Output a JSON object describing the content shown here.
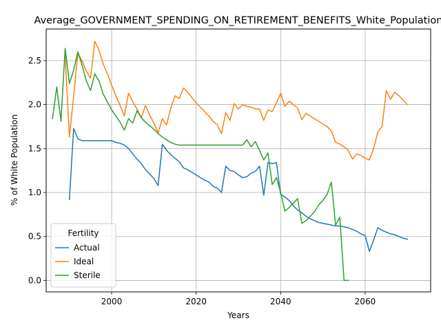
{
  "chart_data": {
    "type": "line",
    "title": "Average_GOVERNMENT_SPENDING_ON_RETIREMENT_BENEFITS_White_Population",
    "xlabel": "Years",
    "ylabel": "% of White Population",
    "xlim": [
      2084,
      2075
    ],
    "ylim": [
      -0.13,
      2.86
    ],
    "x_ticks": [
      2000,
      2020,
      2040,
      2060
    ],
    "y_ticks": [
      0.0,
      0.5,
      1.0,
      1.5,
      2.0,
      2.5
    ],
    "x_tick_labels": [
      "2000",
      "2020",
      "2040",
      "2060"
    ],
    "y_tick_labels": [
      "0.0",
      "0.5",
      "1.0",
      "1.5",
      "2.0",
      "2.5"
    ],
    "grid": true,
    "legend": {
      "title": "Fertility",
      "placement": "lower-left"
    },
    "series": [
      {
        "name": "Actual",
        "color": "#1f77b4",
        "points": [
          [
            1990,
            0.92
          ],
          [
            1991,
            1.73
          ],
          [
            1992,
            1.61
          ],
          [
            1993,
            1.59
          ],
          [
            1994,
            1.59
          ],
          [
            1995,
            1.59
          ],
          [
            1996,
            1.59
          ],
          [
            1997,
            1.59
          ],
          [
            1998,
            1.59
          ],
          [
            1999,
            1.59
          ],
          [
            2000,
            1.59
          ],
          [
            2001,
            1.57
          ],
          [
            2002,
            1.56
          ],
          [
            2003,
            1.54
          ],
          [
            2004,
            1.5
          ],
          [
            2005,
            1.44
          ],
          [
            2006,
            1.38
          ],
          [
            2007,
            1.33
          ],
          [
            2008,
            1.26
          ],
          [
            2009,
            1.21
          ],
          [
            2010,
            1.16
          ],
          [
            2011,
            1.08
          ],
          [
            2012,
            1.55
          ],
          [
            2013,
            1.48
          ],
          [
            2014,
            1.43
          ],
          [
            2015,
            1.39
          ],
          [
            2016,
            1.35
          ],
          [
            2017,
            1.28
          ],
          [
            2018,
            1.26
          ],
          [
            2019,
            1.23
          ],
          [
            2020,
            1.2
          ],
          [
            2021,
            1.17
          ],
          [
            2022,
            1.14
          ],
          [
            2023,
            1.12
          ],
          [
            2024,
            1.07
          ],
          [
            2025,
            1.05
          ],
          [
            2026,
            1.0
          ],
          [
            2027,
            1.3
          ],
          [
            2028,
            1.25
          ],
          [
            2029,
            1.24
          ],
          [
            2030,
            1.2
          ],
          [
            2031,
            1.17
          ],
          [
            2032,
            1.18
          ],
          [
            2033,
            1.22
          ],
          [
            2034,
            1.24
          ],
          [
            2035,
            1.3
          ],
          [
            2036,
            0.97
          ],
          [
            2037,
            1.34
          ],
          [
            2038,
            1.33
          ],
          [
            2039,
            1.34
          ],
          [
            2040,
            0.98
          ],
          [
            2041,
            0.95
          ],
          [
            2042,
            0.91
          ],
          [
            2043,
            0.85
          ],
          [
            2044,
            0.8
          ],
          [
            2045,
            0.77
          ],
          [
            2046,
            0.73
          ],
          [
            2047,
            0.7
          ],
          [
            2048,
            0.68
          ],
          [
            2049,
            0.66
          ],
          [
            2050,
            0.65
          ],
          [
            2051,
            0.64
          ],
          [
            2052,
            0.63
          ],
          [
            2053,
            0.62
          ],
          [
            2054,
            0.62
          ],
          [
            2055,
            0.61
          ],
          [
            2056,
            0.6
          ],
          [
            2057,
            0.58
          ],
          [
            2058,
            0.56
          ],
          [
            2059,
            0.53
          ],
          [
            2060,
            0.51
          ],
          [
            2061,
            0.33
          ],
          [
            2062,
            0.46
          ],
          [
            2063,
            0.6
          ],
          [
            2064,
            0.57
          ],
          [
            2065,
            0.55
          ],
          [
            2066,
            0.53
          ],
          [
            2067,
            0.52
          ],
          [
            2068,
            0.5
          ],
          [
            2069,
            0.48
          ],
          [
            2070,
            0.47
          ]
        ]
      },
      {
        "name": "Ideal",
        "color": "#ff7f0e",
        "points": [
          [
            1989,
            2.56
          ],
          [
            1990,
            1.63
          ],
          [
            1991,
            2.1
          ],
          [
            1992,
            2.58
          ],
          [
            1993,
            2.5
          ],
          [
            1994,
            2.38
          ],
          [
            1995,
            2.3
          ],
          [
            1996,
            2.72
          ],
          [
            1997,
            2.62
          ],
          [
            1998,
            2.46
          ],
          [
            1999,
            2.35
          ],
          [
            2000,
            2.22
          ],
          [
            2001,
            2.1
          ],
          [
            2002,
            1.99
          ],
          [
            2003,
            1.87
          ],
          [
            2004,
            2.13
          ],
          [
            2005,
            2.03
          ],
          [
            2006,
            1.95
          ],
          [
            2007,
            1.85
          ],
          [
            2008,
            1.99
          ],
          [
            2009,
            1.88
          ],
          [
            2010,
            1.79
          ],
          [
            2011,
            1.68
          ],
          [
            2012,
            1.84
          ],
          [
            2013,
            1.77
          ],
          [
            2014,
            1.96
          ],
          [
            2015,
            2.1
          ],
          [
            2016,
            2.07
          ],
          [
            2017,
            2.19
          ],
          [
            2018,
            2.14
          ],
          [
            2019,
            2.08
          ],
          [
            2020,
            2.02
          ],
          [
            2021,
            1.97
          ],
          [
            2022,
            1.92
          ],
          [
            2023,
            1.87
          ],
          [
            2024,
            1.81
          ],
          [
            2025,
            1.77
          ],
          [
            2026,
            1.67
          ],
          [
            2027,
            1.91
          ],
          [
            2028,
            1.82
          ],
          [
            2029,
            2.01
          ],
          [
            2030,
            1.95
          ],
          [
            2031,
            2.0
          ],
          [
            2032,
            1.98
          ],
          [
            2033,
            1.97
          ],
          [
            2034,
            1.95
          ],
          [
            2035,
            1.95
          ],
          [
            2036,
            1.82
          ],
          [
            2037,
            1.94
          ],
          [
            2038,
            1.92
          ],
          [
            2039,
            2.02
          ],
          [
            2040,
            2.13
          ],
          [
            2041,
            1.98
          ],
          [
            2042,
            2.04
          ],
          [
            2043,
            2.0
          ],
          [
            2044,
            1.96
          ],
          [
            2045,
            1.83
          ],
          [
            2046,
            1.9
          ],
          [
            2047,
            1.87
          ],
          [
            2048,
            1.84
          ],
          [
            2049,
            1.81
          ],
          [
            2050,
            1.78
          ],
          [
            2051,
            1.75
          ],
          [
            2052,
            1.7
          ],
          [
            2053,
            1.57
          ],
          [
            2054,
            1.55
          ],
          [
            2055,
            1.52
          ],
          [
            2056,
            1.48
          ],
          [
            2057,
            1.38
          ],
          [
            2058,
            1.44
          ],
          [
            2059,
            1.42
          ],
          [
            2060,
            1.39
          ],
          [
            2061,
            1.37
          ],
          [
            2062,
            1.5
          ],
          [
            2063,
            1.69
          ],
          [
            2064,
            1.75
          ],
          [
            2065,
            2.16
          ],
          [
            2066,
            2.06
          ],
          [
            2067,
            2.14
          ],
          [
            2068,
            2.1
          ],
          [
            2069,
            2.05
          ],
          [
            2070,
            2.0
          ]
        ]
      },
      {
        "name": "Sterile",
        "color": "#2ca02c",
        "points": [
          [
            1986,
            1.84
          ],
          [
            1987,
            2.2
          ],
          [
            1988,
            1.81
          ],
          [
            1989,
            2.64
          ],
          [
            1990,
            2.24
          ],
          [
            1991,
            2.39
          ],
          [
            1992,
            2.6
          ],
          [
            1993,
            2.45
          ],
          [
            1994,
            2.27
          ],
          [
            1995,
            2.16
          ],
          [
            1996,
            2.35
          ],
          [
            1997,
            2.27
          ],
          [
            1998,
            2.12
          ],
          [
            1999,
            2.03
          ],
          [
            2000,
            1.94
          ],
          [
            2001,
            1.87
          ],
          [
            2002,
            1.8
          ],
          [
            2003,
            1.71
          ],
          [
            2004,
            1.84
          ],
          [
            2005,
            1.79
          ],
          [
            2006,
            1.93
          ],
          [
            2007,
            1.85
          ],
          [
            2008,
            1.8
          ],
          [
            2009,
            1.76
          ],
          [
            2010,
            1.72
          ],
          [
            2011,
            1.67
          ],
          [
            2012,
            1.63
          ],
          [
            2013,
            1.6
          ],
          [
            2014,
            1.57
          ],
          [
            2015,
            1.55
          ],
          [
            2016,
            1.54
          ],
          [
            2017,
            1.54
          ],
          [
            2018,
            1.54
          ],
          [
            2019,
            1.54
          ],
          [
            2020,
            1.54
          ],
          [
            2021,
            1.54
          ],
          [
            2022,
            1.54
          ],
          [
            2023,
            1.54
          ],
          [
            2024,
            1.54
          ],
          [
            2025,
            1.54
          ],
          [
            2026,
            1.54
          ],
          [
            2027,
            1.54
          ],
          [
            2028,
            1.54
          ],
          [
            2029,
            1.54
          ],
          [
            2030,
            1.54
          ],
          [
            2031,
            1.54
          ],
          [
            2032,
            1.6
          ],
          [
            2033,
            1.52
          ],
          [
            2034,
            1.58
          ],
          [
            2035,
            1.48
          ],
          [
            2036,
            1.37
          ],
          [
            2037,
            1.45
          ],
          [
            2038,
            1.09
          ],
          [
            2039,
            1.17
          ],
          [
            2040,
            1.0
          ],
          [
            2041,
            0.79
          ],
          [
            2042,
            0.83
          ],
          [
            2043,
            0.88
          ],
          [
            2044,
            0.93
          ],
          [
            2045,
            0.65
          ],
          [
            2046,
            0.68
          ],
          [
            2047,
            0.73
          ],
          [
            2048,
            0.78
          ],
          [
            2049,
            0.86
          ],
          [
            2050,
            0.91
          ],
          [
            2051,
            0.98
          ],
          [
            2052,
            1.12
          ],
          [
            2053,
            0.63
          ],
          [
            2054,
            0.72
          ],
          [
            2055,
            0.0
          ],
          [
            2056,
            0.0
          ]
        ]
      }
    ]
  }
}
